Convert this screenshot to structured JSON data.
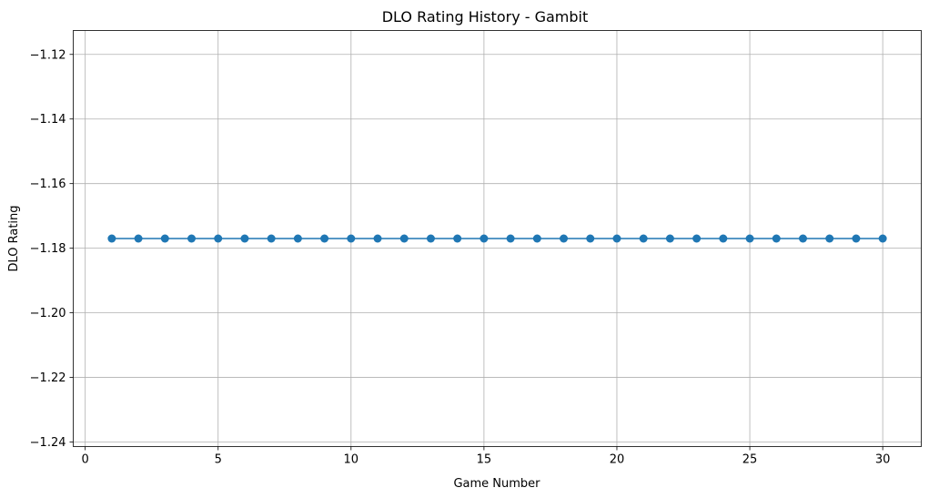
{
  "chart_data": {
    "type": "line",
    "title": "DLO Rating History - Gambit",
    "xlabel": "Game Number",
    "ylabel": "DLO Rating",
    "xlim": [
      -0.45,
      31.45
    ],
    "ylim": [
      -1.2414,
      -1.1126
    ],
    "xticks": [
      0,
      5,
      10,
      15,
      20,
      25,
      30
    ],
    "yticks": [
      -1.12,
      -1.14,
      -1.16,
      -1.18,
      -1.2,
      -1.22,
      -1.24
    ],
    "xtick_labels": [
      "0",
      "5",
      "10",
      "15",
      "20",
      "25",
      "30"
    ],
    "ytick_labels": [
      "−1.12",
      "−1.14",
      "−1.16",
      "−1.18",
      "−1.20",
      "−1.22",
      "−1.24"
    ],
    "grid": true,
    "series": [
      {
        "color": "#1f77b4",
        "marker": "circle",
        "x": [
          1,
          2,
          3,
          4,
          5,
          6,
          7,
          8,
          9,
          10,
          11,
          12,
          13,
          14,
          15,
          16,
          17,
          18,
          19,
          20,
          21,
          22,
          23,
          24,
          25,
          26,
          27,
          28,
          29,
          30
        ],
        "y": [
          -1.177,
          -1.177,
          -1.177,
          -1.177,
          -1.177,
          -1.177,
          -1.177,
          -1.177,
          -1.177,
          -1.177,
          -1.177,
          -1.177,
          -1.177,
          -1.177,
          -1.177,
          -1.177,
          -1.177,
          -1.177,
          -1.177,
          -1.177,
          -1.177,
          -1.177,
          -1.177,
          -1.177,
          -1.177,
          -1.177,
          -1.177,
          -1.177,
          -1.177,
          -1.177
        ]
      }
    ]
  }
}
